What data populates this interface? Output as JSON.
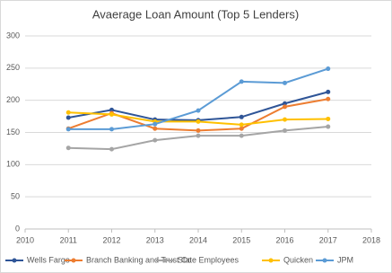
{
  "chart_data": {
    "type": "line",
    "title": "Avaerage Loan Amount (Top 5 Lenders)",
    "x": [
      2011,
      2012,
      2013,
      2014,
      2015,
      2016,
      2017
    ],
    "xlim": [
      2010,
      2018
    ],
    "xticks": [
      2010,
      2011,
      2012,
      2013,
      2014,
      2015,
      2016,
      2017,
      2018
    ],
    "ylim": [
      0,
      300
    ],
    "yticks": [
      0,
      50,
      100,
      150,
      200,
      250,
      300
    ],
    "grid": true,
    "legend": "bottom",
    "series": [
      {
        "name": "Wells Fargo",
        "color": "#2f5597",
        "values": [
          173,
          185,
          170,
          169,
          174,
          195,
          213
        ]
      },
      {
        "name": "Branch Banking and Trust Co",
        "color": "#ed7d31",
        "values": [
          156,
          180,
          156,
          153,
          156,
          190,
          202
        ]
      },
      {
        "name": "State Employees",
        "color": "#a5a5a5",
        "values": [
          126,
          124,
          138,
          145,
          145,
          153,
          159
        ]
      },
      {
        "name": "Quicken",
        "color": "#ffc000",
        "values": [
          181,
          178,
          167,
          167,
          162,
          170,
          171
        ]
      },
      {
        "name": "JPM",
        "color": "#5b9bd5",
        "values": [
          155,
          155,
          163,
          184,
          229,
          227,
          249
        ]
      }
    ]
  }
}
